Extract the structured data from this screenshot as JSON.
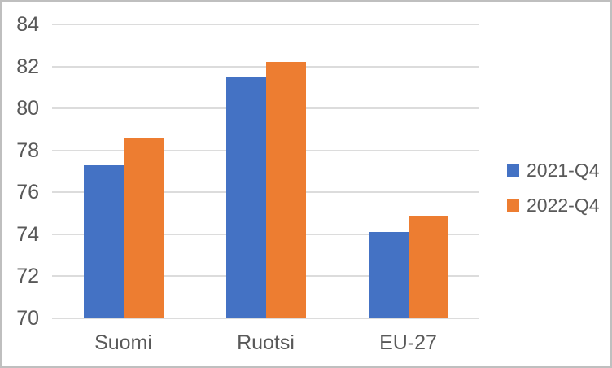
{
  "chart": {
    "background_color": "#FFFFFF",
    "border_color": "#BFBFBF",
    "grid_color": "#DCDCDC",
    "text_color": "#595959"
  },
  "chart_data": {
    "type": "bar",
    "title": "",
    "xlabel": "",
    "ylabel": "",
    "categories": [
      "Suomi",
      "Ruotsi",
      "EU-27"
    ],
    "series": [
      {
        "name": "2021-Q4",
        "color": "#4472C4",
        "values": [
          77.3,
          81.5,
          74.1
        ]
      },
      {
        "name": "2022-Q4",
        "color": "#ED7D31",
        "values": [
          78.6,
          82.2,
          74.9
        ]
      }
    ],
    "ylim": [
      70,
      84
    ],
    "ytick_step": 2,
    "yticks": [
      70,
      72,
      74,
      76,
      78,
      80,
      82,
      84
    ],
    "grid": true,
    "legend_position": "right"
  }
}
